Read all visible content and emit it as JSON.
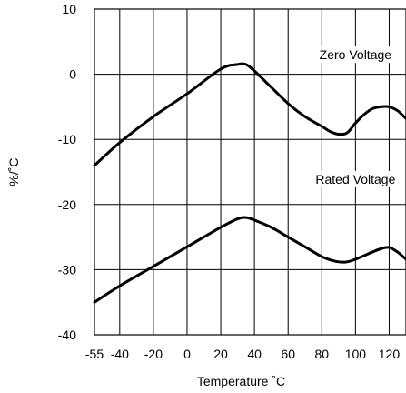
{
  "chart_data": {
    "type": "line",
    "title": "",
    "xlabel": "Temperature ˚C",
    "ylabel": "%/˚C",
    "xlim": [
      -55,
      130
    ],
    "ylim": [
      -40,
      10
    ],
    "x_tick_labels": [
      "-55",
      "-40",
      "-20",
      "0",
      "20",
      "40",
      "60",
      "80",
      "100",
      "120"
    ],
    "x_ticks": [
      -55,
      -40,
      -20,
      0,
      20,
      40,
      60,
      80,
      100,
      120
    ],
    "y_tick_labels": [
      "10",
      "0",
      "-10",
      "-20",
      "-30",
      "-40"
    ],
    "y_ticks": [
      10,
      0,
      -10,
      -20,
      -30,
      -40
    ],
    "grid_x": [
      -40,
      -20,
      0,
      20,
      40,
      60,
      80,
      100,
      120
    ],
    "grid_y": [
      0,
      -10,
      -20,
      -30
    ],
    "grid": true,
    "series": [
      {
        "name": "Zero Voltage",
        "x": [
          -55,
          -40,
          -20,
          0,
          20,
          30,
          35,
          40,
          50,
          60,
          70,
          80,
          85,
          90,
          95,
          100,
          105,
          110,
          115,
          120,
          125,
          130
        ],
        "y": [
          -14,
          -10.5,
          -6.5,
          -3,
          0.8,
          1.5,
          1.5,
          0.5,
          -2,
          -4.5,
          -6.5,
          -8,
          -8.8,
          -9.2,
          -9.0,
          -7.5,
          -6.2,
          -5.3,
          -5.0,
          -5.0,
          -5.6,
          -6.8
        ]
      },
      {
        "name": "Rated Voltage",
        "x": [
          -55,
          -40,
          -20,
          0,
          20,
          30,
          35,
          40,
          50,
          60,
          70,
          80,
          85,
          90,
          95,
          100,
          110,
          115,
          120,
          125,
          130
        ],
        "y": [
          -35,
          -32.5,
          -29.5,
          -26.5,
          -23.5,
          -22.2,
          -22.0,
          -22.4,
          -23.5,
          -25,
          -26.5,
          -28,
          -28.5,
          -28.8,
          -28.8,
          -28.4,
          -27.3,
          -26.8,
          -26.6,
          -27.3,
          -28.4
        ]
      }
    ],
    "annotations": [
      {
        "text": "Zero Voltage",
        "series": 0
      },
      {
        "text": "Rated Voltage",
        "series": 1
      }
    ]
  }
}
